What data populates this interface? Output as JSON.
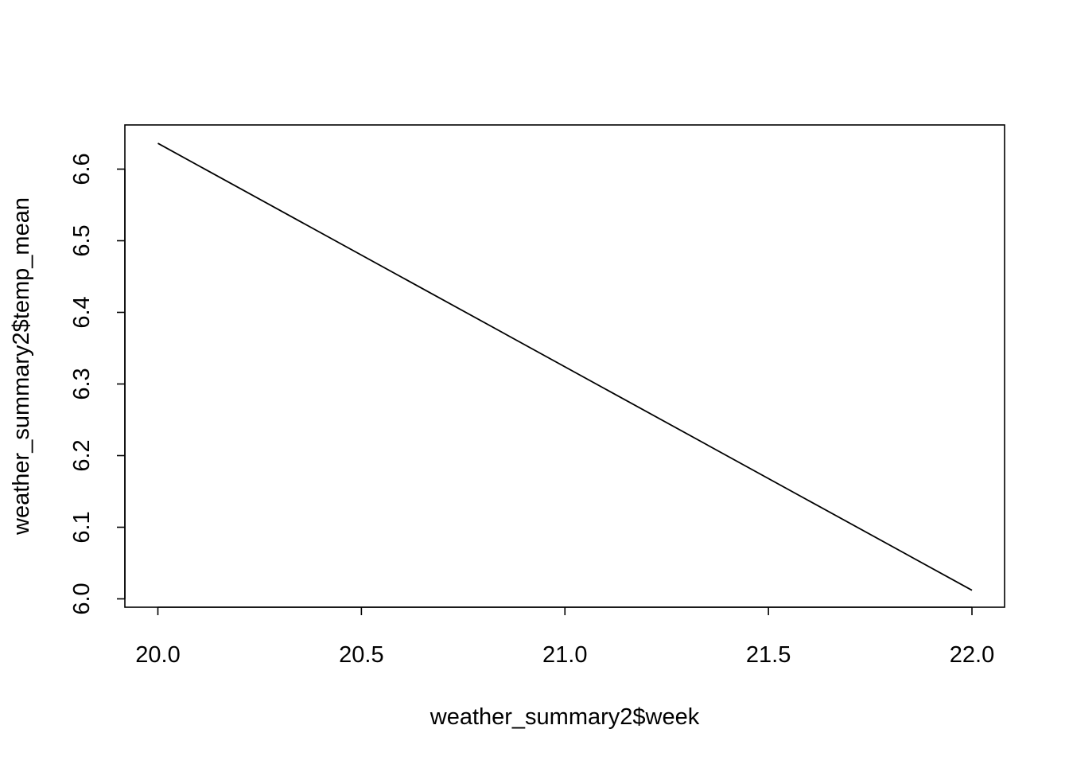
{
  "chart_data": {
    "type": "line",
    "title": "",
    "xlabel": "weather_summary2$week",
    "ylabel": "weather_summary2$temp_mean",
    "x": [
      20,
      22
    ],
    "series": [
      {
        "values": [
          6.636,
          6.012
        ]
      }
    ],
    "xlim": [
      20,
      22
    ],
    "ylim": [
      6.0,
      6.6
    ],
    "xticks": [
      20.0,
      20.5,
      21.0,
      21.5,
      22.0
    ],
    "xtick_labels": [
      "20.0",
      "20.5",
      "21.0",
      "21.5",
      "22.0"
    ],
    "yticks": [
      6.0,
      6.1,
      6.2,
      6.3,
      6.4,
      6.5,
      6.6
    ],
    "ytick_labels": [
      "6.0",
      "6.1",
      "6.2",
      "6.3",
      "6.4",
      "6.5",
      "6.6"
    ],
    "grid": false,
    "legend": "none",
    "line_color": "#000000"
  }
}
